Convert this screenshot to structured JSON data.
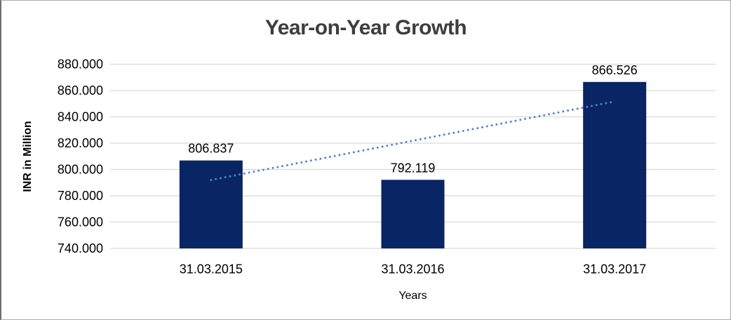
{
  "chart_data": {
    "type": "bar",
    "title": "Year-on-Year Growth",
    "xlabel": "Years",
    "ylabel": "INR in Million",
    "categories": [
      "31.03.2015",
      "31.03.2016",
      "31.03.2017"
    ],
    "values": [
      806.837,
      792.119,
      866.526
    ],
    "value_labels": [
      "806.837",
      "792.119",
      "866.526"
    ],
    "ylim": [
      740,
      880
    ],
    "ytick_values": [
      880,
      860,
      840,
      820,
      800,
      780,
      760,
      740
    ],
    "ytick_labels": [
      "880.000",
      "860.000",
      "840.000",
      "820.000",
      "800.000",
      "780.000",
      "760.000",
      "740.000"
    ],
    "grid": "horizontal",
    "legend": "none",
    "colors": {
      "bar": "#0A2563",
      "grid": "#D9D9D9",
      "trendline": "#4E86C8",
      "title_text": "#3D3D3D",
      "label_text": "#000000",
      "frame_border": "#ABABAB"
    },
    "trendline": {
      "type": "linear",
      "style": "dotted"
    }
  }
}
